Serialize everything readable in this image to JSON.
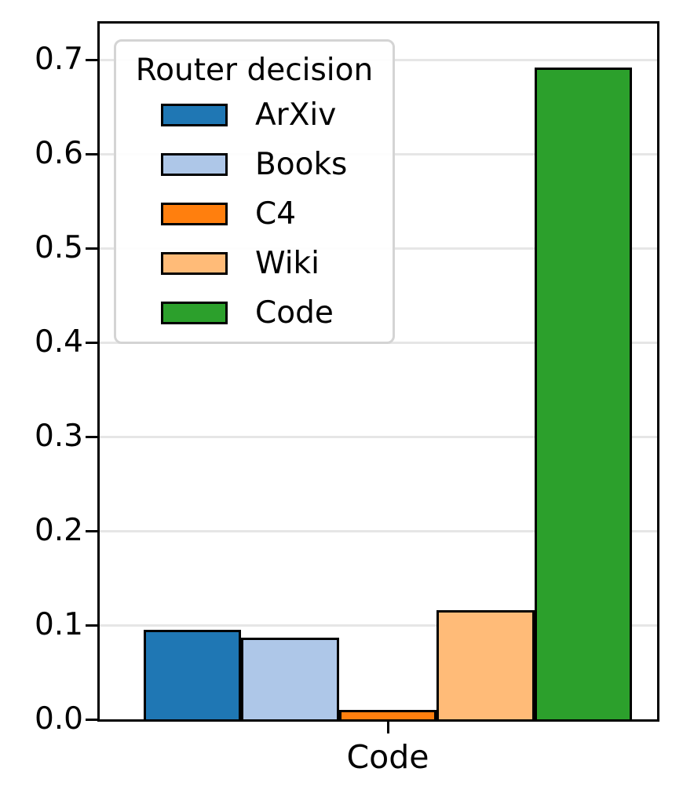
{
  "chart_data": {
    "type": "bar",
    "title": "",
    "xlabel": "",
    "ylabel": "",
    "categories": [
      "Code"
    ],
    "series": [
      {
        "name": "ArXiv",
        "color": "#1f77b4",
        "values": [
          0.095
        ]
      },
      {
        "name": "Books",
        "color": "#aec7e8",
        "values": [
          0.087
        ]
      },
      {
        "name": "C4",
        "color": "#ff7f0e",
        "values": [
          0.01
        ]
      },
      {
        "name": "Wiki",
        "color": "#ffbb78",
        "values": [
          0.116
        ]
      },
      {
        "name": "Code",
        "color": "#2ca02c",
        "values": [
          0.692
        ]
      }
    ],
    "ylim": [
      0.0,
      0.741
    ],
    "yticks": [
      0.0,
      0.1,
      0.2,
      0.3,
      0.4,
      0.5,
      0.6,
      0.7
    ],
    "ytick_labels": [
      "0.0",
      "0.1",
      "0.2",
      "0.3",
      "0.4",
      "0.5",
      "0.6",
      "0.7"
    ],
    "grid": "horizontal",
    "grid_color": "#e6e6e6",
    "legend": {
      "title": "Router decision",
      "position": "upper left",
      "entries": [
        "ArXiv",
        "Books",
        "C4",
        "Wiki",
        "Code"
      ]
    },
    "bar_edge_color": "#000000",
    "background_color": "#ffffff"
  }
}
